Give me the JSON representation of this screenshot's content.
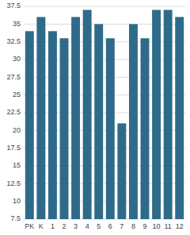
{
  "chart_data": {
    "type": "bar",
    "categories": [
      "PK",
      "K",
      "1",
      "2",
      "3",
      "4",
      "5",
      "6",
      "7",
      "8",
      "9",
      "10",
      "11",
      "12"
    ],
    "values": [
      34,
      36,
      34,
      33,
      36,
      37,
      35,
      33,
      21,
      35,
      33,
      37,
      37,
      36
    ],
    "color": "#2e6b8a",
    "ylim": [
      7.5,
      37.5
    ],
    "yticks": [
      7.5,
      10,
      12.5,
      15,
      17.5,
      20,
      22.5,
      25,
      27.5,
      30,
      32.5,
      35,
      37.5
    ],
    "grid": true
  }
}
